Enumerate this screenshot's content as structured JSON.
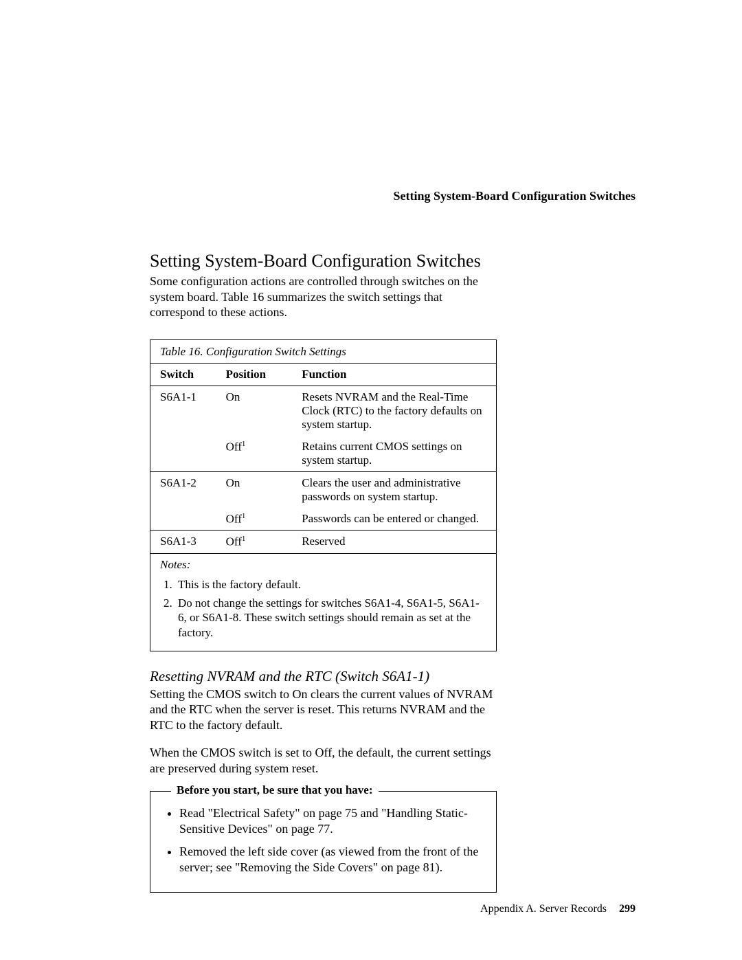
{
  "running_head": "Setting System-Board Configuration Switches",
  "title": "Setting System-Board Configuration Switches",
  "intro": "Some configuration actions are controlled through switches on the system board.  Table  16 summarizes the switch settings that correspond to these actions.",
  "table": {
    "caption": "Table  16.  Configuration Switch Settings",
    "headers": {
      "switch": "Switch",
      "position": "Position",
      "function": "Function"
    },
    "rows": [
      {
        "switch": "S6A1-1",
        "position": "On",
        "sup": "",
        "function": "Resets NVRAM and the Real-Time Clock (RTC) to the factory defaults on system startup.",
        "divider": false
      },
      {
        "switch": "",
        "position": "Off",
        "sup": "1",
        "function": "Retains current CMOS settings on system startup.",
        "divider": false
      },
      {
        "switch": "S6A1-2",
        "position": "On",
        "sup": "",
        "function": "Clears the user and administrative passwords on system startup.",
        "divider": true
      },
      {
        "switch": "",
        "position": "Off",
        "sup": "1",
        "function": "Passwords can be entered or changed.",
        "divider": false
      },
      {
        "switch": "S6A1-3",
        "position": "Off",
        "sup": "1",
        "function": "Reserved",
        "divider": true
      }
    ],
    "notes_title": "Notes:",
    "notes": [
      "This is the factory default.",
      "Do not change the settings for switches S6A1-4, S6A1-5, S6A1-6, or S6A1-8.  These switch settings should remain as set at the factory."
    ]
  },
  "section": {
    "heading": "Resetting NVRAM and the RTC (Switch S6A1-1)",
    "p1": "Setting the CMOS switch to On clears the current values of NVRAM and the RTC when the server is reset.  This returns NVRAM and the RTC to the factory default.",
    "p2": "When the CMOS switch is set to Off, the default, the current settings are preserved during system reset."
  },
  "before": {
    "legend": "Before you start, be sure that you have:",
    "items": [
      "Read \"Electrical Safety\" on page  75 and \"Handling Static-Sensitive Devices\" on page  77.",
      "Removed the left side cover (as viewed from the front of the server; see \"Removing the Side Covers\" on page  81)."
    ]
  },
  "footer": {
    "text": "Appendix A.  Server Records",
    "page": "299"
  }
}
